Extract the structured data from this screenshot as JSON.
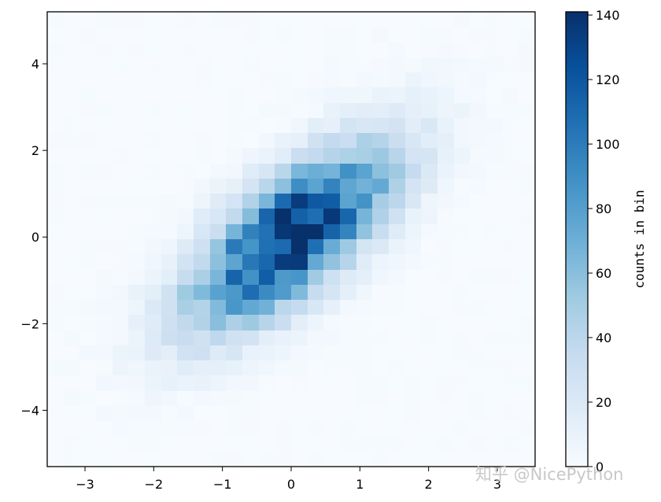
{
  "chart_data": {
    "type": "heatmap",
    "title": "",
    "xlabel": "",
    "ylabel": "",
    "xlim": [
      -3.55,
      3.55
    ],
    "ylim": [
      -5.3,
      5.2
    ],
    "xticks": [
      -3,
      -2,
      -1,
      0,
      1,
      2,
      3
    ],
    "xtick_labels": [
      "−3",
      "−2",
      "−1",
      "0",
      "1",
      "2",
      "3"
    ],
    "yticks": [
      -4,
      -2,
      0,
      2,
      4
    ],
    "ytick_labels": [
      "−4",
      "−2",
      "0",
      "2",
      "4"
    ],
    "bins": [
      30,
      30
    ],
    "colormap": "Blues",
    "grid": false,
    "colorbar": {
      "label": "counts in bin",
      "vmin": 0,
      "vmax": 141,
      "ticks": [
        0,
        20,
        40,
        60,
        80,
        100,
        120,
        140
      ],
      "tick_labels": [
        "0",
        "20",
        "40",
        "60",
        "80",
        "100",
        "120",
        "140"
      ]
    },
    "distribution": {
      "mean": [
        0,
        0
      ],
      "cov": [
        [
          1,
          1
        ],
        [
          1,
          2
        ]
      ],
      "peak_count": 141
    }
  },
  "watermark": "知乎 @NicePython"
}
